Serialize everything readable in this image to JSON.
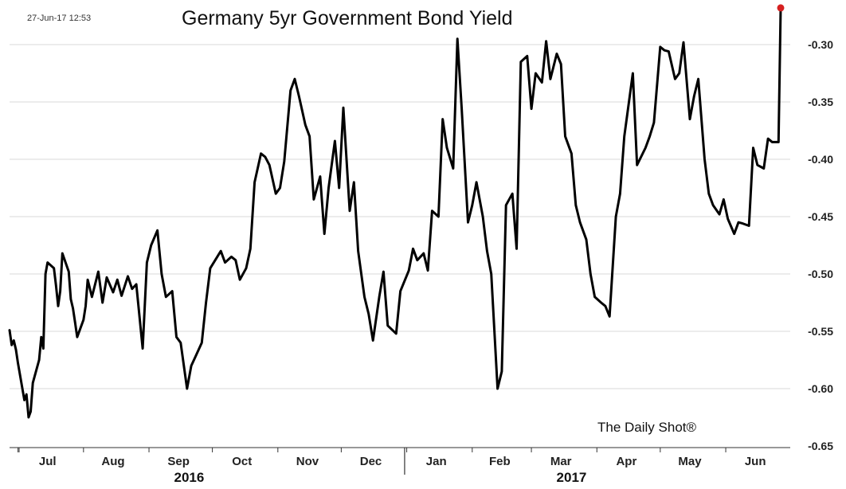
{
  "header": {
    "timestamp": "27-Jun-17 12:53",
    "title": "Germany 5yr Government Bond Yield"
  },
  "footer": {
    "source": "The Daily Shot®"
  },
  "colors": {
    "line": "#000000",
    "grid": "#d8d8d8",
    "axis": "#333333",
    "last_point": "#d62020"
  },
  "chart_data": {
    "type": "line",
    "title": "Germany 5yr Government Bond Yield",
    "xlabel": "",
    "ylabel": "",
    "ylim": [
      -0.65,
      -0.3
    ],
    "y_ticks": [
      "-0.30",
      "-0.35",
      "-0.40",
      "-0.45",
      "-0.50",
      "-0.55",
      "-0.60",
      "-0.65"
    ],
    "y_axis_side": "right",
    "grid": true,
    "legend": "none",
    "x_range": [
      "2016-06-27",
      "2017-06-27"
    ],
    "months": [
      {
        "label": "Jul",
        "date": "2016-07-15"
      },
      {
        "label": "Aug",
        "date": "2016-08-15"
      },
      {
        "label": "Sep",
        "date": "2016-09-15"
      },
      {
        "label": "Oct",
        "date": "2016-10-15"
      },
      {
        "label": "Nov",
        "date": "2016-11-15"
      },
      {
        "label": "Dec",
        "date": "2016-12-15"
      },
      {
        "label": "Jan",
        "date": "2017-01-15"
      },
      {
        "label": "Feb",
        "date": "2017-02-14"
      },
      {
        "label": "Mar",
        "date": "2017-03-15"
      },
      {
        "label": "Apr",
        "date": "2017-04-15"
      },
      {
        "label": "May",
        "date": "2017-05-15"
      },
      {
        "label": "Jun",
        "date": "2017-06-15"
      }
    ],
    "years": [
      {
        "label": "2016",
        "date": "2016-09-20"
      },
      {
        "label": "2017",
        "date": "2017-03-20"
      }
    ],
    "year_divider": "2016-12-31",
    "series": [
      {
        "x": [
          "2016-06-27",
          "2016-06-28",
          "2016-06-29",
          "2016-06-30",
          "2016-07-01",
          "2016-07-04",
          "2016-07-05",
          "2016-07-06",
          "2016-07-07",
          "2016-07-08",
          "2016-07-11",
          "2016-07-12",
          "2016-07-13",
          "2016-07-14",
          "2016-07-15",
          "2016-07-18",
          "2016-07-19",
          "2016-07-20",
          "2016-07-21",
          "2016-07-22",
          "2016-07-25",
          "2016-07-26",
          "2016-07-27",
          "2016-07-28",
          "2016-07-29",
          "2016-08-01",
          "2016-08-02",
          "2016-08-03",
          "2016-08-05",
          "2016-08-08",
          "2016-08-10",
          "2016-08-12",
          "2016-08-15",
          "2016-08-17",
          "2016-08-19",
          "2016-08-22",
          "2016-08-24",
          "2016-08-26",
          "2016-08-29",
          "2016-08-31",
          "2016-09-02",
          "2016-09-05",
          "2016-09-07",
          "2016-09-09",
          "2016-09-12",
          "2016-09-14",
          "2016-09-16",
          "2016-09-19",
          "2016-09-21",
          "2016-09-23",
          "2016-09-26",
          "2016-09-28",
          "2016-09-30",
          "2016-10-03",
          "2016-10-05",
          "2016-10-07",
          "2016-10-10",
          "2016-10-12",
          "2016-10-14",
          "2016-10-17",
          "2016-10-19",
          "2016-10-21",
          "2016-10-24",
          "2016-10-26",
          "2016-10-28",
          "2016-10-31",
          "2016-11-02",
          "2016-11-04",
          "2016-11-07",
          "2016-11-09",
          "2016-11-11",
          "2016-11-14",
          "2016-11-16",
          "2016-11-18",
          "2016-11-21",
          "2016-11-23",
          "2016-11-25",
          "2016-11-28",
          "2016-11-30",
          "2016-12-02",
          "2016-12-05",
          "2016-12-07",
          "2016-12-09",
          "2016-12-12",
          "2016-12-14",
          "2016-12-16",
          "2016-12-19",
          "2016-12-21",
          "2016-12-23",
          "2016-12-27",
          "2016-12-29",
          "2017-01-02",
          "2017-01-04",
          "2017-01-06",
          "2017-01-09",
          "2017-01-11",
          "2017-01-13",
          "2017-01-16",
          "2017-01-18",
          "2017-01-20",
          "2017-01-23",
          "2017-01-25",
          "2017-01-27",
          "2017-01-30",
          "2017-02-01",
          "2017-02-03",
          "2017-02-06",
          "2017-02-08",
          "2017-02-10",
          "2017-02-13",
          "2017-02-15",
          "2017-02-17",
          "2017-02-20",
          "2017-02-22",
          "2017-02-24",
          "2017-02-27",
          "2017-03-01",
          "2017-03-03",
          "2017-03-06",
          "2017-03-08",
          "2017-03-10",
          "2017-03-13",
          "2017-03-15",
          "2017-03-17",
          "2017-03-20",
          "2017-03-22",
          "2017-03-24",
          "2017-03-27",
          "2017-03-29",
          "2017-03-31",
          "2017-04-03",
          "2017-04-05",
          "2017-04-07",
          "2017-04-10",
          "2017-04-12",
          "2017-04-14",
          "2017-04-18",
          "2017-04-20",
          "2017-04-24",
          "2017-04-26",
          "2017-04-28",
          "2017-05-01",
          "2017-05-03",
          "2017-05-05",
          "2017-05-08",
          "2017-05-10",
          "2017-05-12",
          "2017-05-15",
          "2017-05-17",
          "2017-05-19",
          "2017-05-22",
          "2017-05-24",
          "2017-05-26",
          "2017-05-29",
          "2017-05-31",
          "2017-06-02",
          "2017-06-05",
          "2017-06-07",
          "2017-06-09",
          "2017-06-12",
          "2017-06-14",
          "2017-06-16",
          "2017-06-19",
          "2017-06-21",
          "2017-06-23",
          "2017-06-26",
          "2017-06-27"
        ],
        "y": [
          -0.549,
          -0.562,
          -0.558,
          -0.566,
          -0.578,
          -0.61,
          -0.605,
          -0.625,
          -0.62,
          -0.595,
          -0.575,
          -0.555,
          -0.565,
          -0.5,
          -0.49,
          -0.495,
          -0.51,
          -0.528,
          -0.515,
          -0.482,
          -0.498,
          -0.522,
          -0.53,
          -0.542,
          -0.555,
          -0.54,
          -0.528,
          -0.505,
          -0.52,
          -0.498,
          -0.525,
          -0.503,
          -0.516,
          -0.505,
          -0.519,
          -0.502,
          -0.513,
          -0.509,
          -0.565,
          -0.49,
          -0.475,
          -0.462,
          -0.5,
          -0.52,
          -0.515,
          -0.555,
          -0.56,
          -0.6,
          -0.58,
          -0.572,
          -0.56,
          -0.525,
          -0.495,
          -0.486,
          -0.48,
          -0.49,
          -0.485,
          -0.488,
          -0.505,
          -0.495,
          -0.478,
          -0.42,
          -0.395,
          -0.398,
          -0.405,
          -0.43,
          -0.425,
          -0.402,
          -0.34,
          -0.33,
          -0.345,
          -0.37,
          -0.38,
          -0.435,
          -0.415,
          -0.465,
          -0.425,
          -0.384,
          -0.425,
          -0.355,
          -0.445,
          -0.42,
          -0.48,
          -0.52,
          -0.535,
          -0.558,
          -0.52,
          -0.498,
          -0.545,
          -0.552,
          -0.515,
          -0.497,
          -0.478,
          -0.488,
          -0.482,
          -0.497,
          -0.445,
          -0.45,
          -0.365,
          -0.39,
          -0.408,
          -0.295,
          -0.355,
          -0.455,
          -0.44,
          -0.42,
          -0.45,
          -0.48,
          -0.5,
          -0.6,
          -0.585,
          -0.44,
          -0.43,
          -0.478,
          -0.315,
          -0.31,
          -0.356,
          -0.325,
          -0.333,
          -0.297,
          -0.33,
          -0.308,
          -0.317,
          -0.38,
          -0.395,
          -0.44,
          -0.455,
          -0.47,
          -0.5,
          -0.52,
          -0.525,
          -0.528,
          -0.537,
          -0.45,
          -0.43,
          -0.38,
          -0.325,
          -0.405,
          -0.39,
          -0.38,
          -0.368,
          -0.302,
          -0.305,
          -0.306,
          -0.33,
          -0.325,
          -0.298,
          -0.365,
          -0.345,
          -0.33,
          -0.4,
          -0.43,
          -0.44,
          -0.448,
          -0.435,
          -0.452,
          -0.465,
          -0.455,
          -0.456,
          -0.458,
          -0.39,
          -0.405,
          -0.408,
          -0.382,
          -0.385,
          -0.385,
          -0.268
        ]
      }
    ]
  }
}
